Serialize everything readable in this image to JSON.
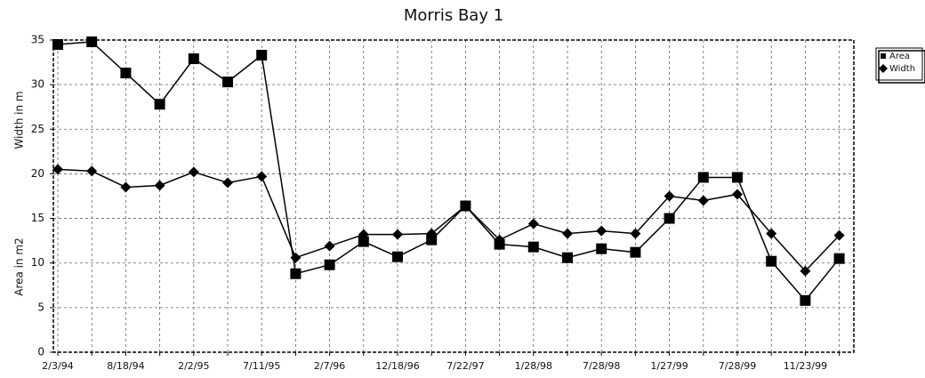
{
  "chart_data": {
    "type": "line",
    "title": "Morris Bay 1",
    "y_label_lines": [
      "Area in m2",
      "Width in m"
    ],
    "categories": [
      "2/3/94",
      null,
      "8/18/94",
      null,
      "2/2/95",
      null,
      "7/11/95",
      null,
      "2/7/96",
      null,
      "12/18/96",
      null,
      "7/22/97",
      null,
      "1/28/98",
      null,
      "7/28/98",
      null,
      "1/27/99",
      null,
      "7/28/99",
      null,
      "11/23/99",
      null
    ],
    "series": [
      {
        "name": "Area",
        "color": "#000000",
        "marker": "square",
        "values": [
          34.5,
          34.8,
          31.3,
          27.8,
          32.9,
          30.3,
          33.3,
          8.8,
          9.8,
          12.4,
          10.7,
          12.6,
          16.4,
          12.1,
          11.8,
          10.6,
          11.6,
          11.2,
          15.0,
          19.6,
          19.6,
          10.2,
          5.8,
          10.5
        ]
      },
      {
        "name": "Width",
        "color": "#000000",
        "marker": "diamond",
        "values": [
          20.5,
          20.3,
          18.5,
          18.7,
          20.2,
          19.0,
          19.7,
          10.6,
          11.9,
          13.2,
          13.2,
          13.3,
          16.4,
          12.6,
          14.4,
          13.3,
          13.6,
          13.3,
          17.5,
          17.0,
          17.7,
          13.3,
          9.1,
          13.1
        ]
      }
    ],
    "ylim": [
      0,
      35
    ],
    "yticks": [
      0,
      5,
      10,
      15,
      20,
      25,
      30,
      35
    ],
    "grid": true,
    "legend": "right"
  }
}
